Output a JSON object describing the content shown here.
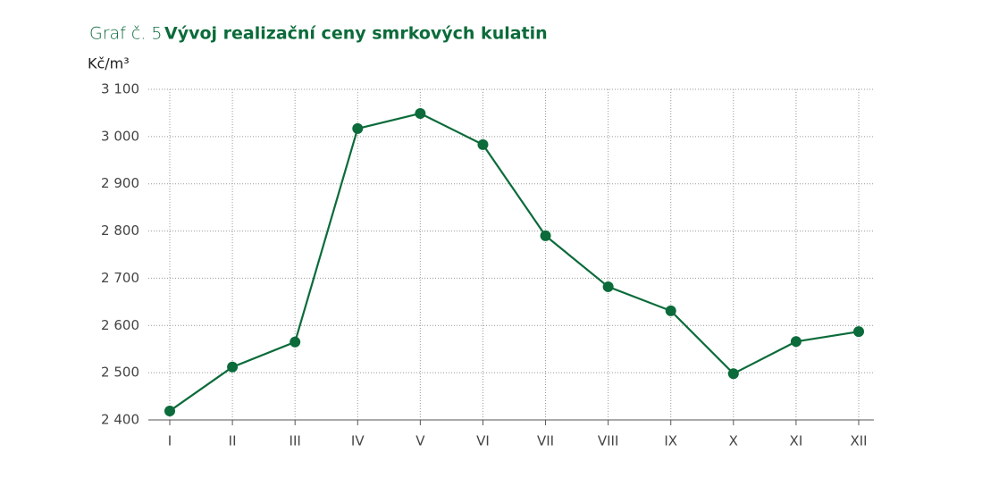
{
  "chart_data": {
    "type": "line",
    "figure_label": "Graf č. 5",
    "title": "Vývoj realizační ceny smrkových kulatin",
    "y_label": "Kč/m³",
    "categories": [
      "I",
      "II",
      "III",
      "IV",
      "V",
      "VI",
      "VII",
      "VIII",
      "IX",
      "X",
      "XI",
      "XII"
    ],
    "series": [
      {
        "color": "#0b6b3a",
        "values": [
          2419,
          2512,
          2565,
          3017,
          3049,
          2983,
          2790,
          2682,
          2631,
          2498,
          2566,
          2587
        ]
      }
    ],
    "ylim": [
      2400,
      3100
    ],
    "yticks": [
      {
        "value": 2400,
        "label": "2 400"
      },
      {
        "value": 2500,
        "label": "2 500"
      },
      {
        "value": 2600,
        "label": "2 600"
      },
      {
        "value": 2700,
        "label": "2 700"
      },
      {
        "value": 2800,
        "label": "2 800"
      },
      {
        "value": 2900,
        "label": "2 900"
      },
      {
        "value": 3000,
        "label": "3 000"
      },
      {
        "value": 3100,
        "label": "3 100"
      }
    ],
    "grid": true
  }
}
